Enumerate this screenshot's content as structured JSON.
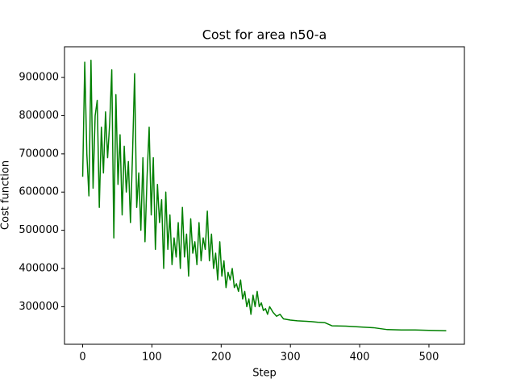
{
  "chart_data": {
    "type": "line",
    "title": "Cost for area n50-a",
    "x_label": "Step",
    "y_label": "Cost function",
    "x": [
      0,
      3,
      6,
      9,
      12,
      15,
      18,
      21,
      24,
      27,
      30,
      33,
      36,
      39,
      42,
      45,
      48,
      51,
      54,
      57,
      60,
      63,
      66,
      69,
      72,
      75,
      78,
      81,
      84,
      87,
      90,
      93,
      96,
      99,
      102,
      105,
      108,
      111,
      114,
      117,
      120,
      123,
      126,
      129,
      132,
      135,
      138,
      141,
      144,
      147,
      150,
      153,
      156,
      159,
      162,
      165,
      168,
      171,
      174,
      177,
      180,
      183,
      186,
      189,
      192,
      195,
      198,
      201,
      204,
      207,
      210,
      213,
      216,
      219,
      222,
      225,
      228,
      231,
      234,
      237,
      240,
      243,
      246,
      249,
      252,
      255,
      258,
      261,
      264,
      267,
      270,
      275,
      280,
      285,
      290,
      300,
      310,
      320,
      330,
      340,
      350,
      360,
      380,
      400,
      420,
      440,
      460,
      480,
      500,
      525
    ],
    "series": [
      {
        "name": "Cost function",
        "color": "#008000",
        "values": [
          640000,
          940000,
          700000,
          590000,
          945000,
          610000,
          800000,
          840000,
          560000,
          770000,
          650000,
          810000,
          690000,
          780000,
          920000,
          480000,
          855000,
          620000,
          750000,
          540000,
          720000,
          600000,
          680000,
          520000,
          700000,
          910000,
          560000,
          650000,
          500000,
          690000,
          470000,
          640000,
          770000,
          540000,
          690000,
          450000,
          620000,
          520000,
          580000,
          400000,
          600000,
          450000,
          540000,
          410000,
          480000,
          430000,
          520000,
          400000,
          560000,
          430000,
          490000,
          380000,
          530000,
          440000,
          470000,
          410000,
          520000,
          420000,
          480000,
          450000,
          550000,
          420000,
          490000,
          400000,
          440000,
          370000,
          470000,
          380000,
          420000,
          350000,
          390000,
          370000,
          400000,
          350000,
          360000,
          340000,
          370000,
          320000,
          340000,
          300000,
          320000,
          280000,
          330000,
          300000,
          340000,
          300000,
          310000,
          290000,
          295000,
          280000,
          300000,
          285000,
          275000,
          280000,
          268000,
          265000,
          263000,
          262000,
          261000,
          259000,
          258000,
          250000,
          249000,
          247000,
          245000,
          240000,
          239000,
          239000,
          238000,
          237000
        ]
      }
    ],
    "xlim": [
      -26.25,
      551.25
    ],
    "ylim": [
      201600,
      980400
    ],
    "xticks": [
      0,
      100,
      200,
      300,
      400,
      500
    ],
    "yticks": [
      300000,
      400000,
      500000,
      600000,
      700000,
      800000,
      900000
    ]
  }
}
